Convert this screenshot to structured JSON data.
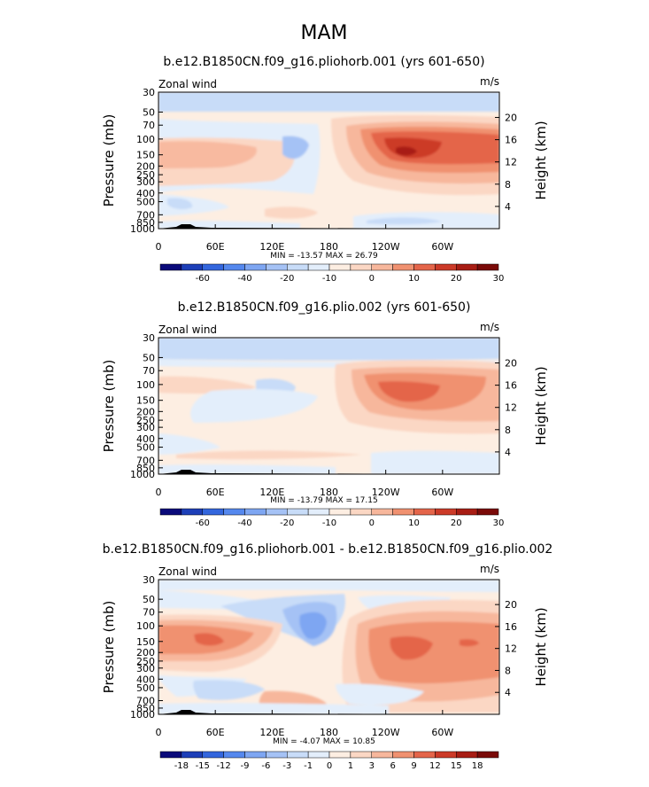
{
  "page_title": "MAM",
  "colors": [
    "#0a0a7a",
    "#1d3fb8",
    "#3366dd",
    "#5588ee",
    "#7ea6f2",
    "#a5c2f5",
    "#c8dcf8",
    "#e3eefb",
    "#fdeee2",
    "#fbd7c4",
    "#f7b79c",
    "#f09170",
    "#e4654a",
    "#cc3a28",
    "#a81d14",
    "#7a0a08"
  ],
  "chart_data": [
    {
      "type": "contour",
      "title": "b.e12.B1850CN.f09_g16.pliohorb.001 (yrs 601-650)",
      "left_label": "Zonal wind",
      "right_label": "m/s",
      "ylabel": "Pressure (mb)",
      "y2label": "Height (km)",
      "x_ticks": [
        "0",
        "60E",
        "120E",
        "180",
        "120W",
        "60W"
      ],
      "y_ticks": [
        "30",
        "50",
        "70",
        "100",
        "150",
        "200",
        "250",
        "300",
        "400",
        "500",
        "700",
        "850",
        "1000"
      ],
      "y2_ticks": [
        "20",
        "16",
        "12",
        "8",
        "4"
      ],
      "stats": "MIN = -13.57   MAX =  26.79",
      "colorbar_labels": [
        "-60",
        "-40",
        "-20",
        "-10",
        "0",
        "10",
        "20",
        "30"
      ]
    },
    {
      "type": "contour",
      "title": "b.e12.B1850CN.f09_g16.plio.002 (yrs 601-650)",
      "left_label": "Zonal wind",
      "right_label": "m/s",
      "ylabel": "Pressure (mb)",
      "y2label": "Height (km)",
      "x_ticks": [
        "0",
        "60E",
        "120E",
        "180",
        "120W",
        "60W"
      ],
      "y_ticks": [
        "30",
        "50",
        "70",
        "100",
        "150",
        "200",
        "250",
        "300",
        "400",
        "500",
        "700",
        "850",
        "1000"
      ],
      "y2_ticks": [
        "20",
        "16",
        "12",
        "8",
        "4"
      ],
      "stats": "MIN = -13.79   MAX =  17.15",
      "colorbar_labels": [
        "-60",
        "-40",
        "-20",
        "-10",
        "0",
        "10",
        "20",
        "30"
      ]
    },
    {
      "type": "contour",
      "title": "b.e12.B1850CN.f09_g16.pliohorb.001 - b.e12.B1850CN.f09_g16.plio.002",
      "left_label": "Zonal wind",
      "right_label": "m/s",
      "ylabel": "Pressure (mb)",
      "y2label": "Height (km)",
      "x_ticks": [
        "0",
        "60E",
        "120E",
        "180",
        "120W",
        "60W"
      ],
      "y_ticks": [
        "30",
        "50",
        "70",
        "100",
        "150",
        "200",
        "250",
        "300",
        "400",
        "500",
        "700",
        "850",
        "1000"
      ],
      "y2_ticks": [
        "20",
        "16",
        "12",
        "8",
        "4"
      ],
      "stats": "MIN =  -4.07   MAX =  10.85",
      "colorbar_labels": [
        "-18",
        "-15",
        "-12",
        "-9",
        "-6",
        "-3",
        "-1",
        "0",
        "1",
        "3",
        "6",
        "9",
        "12",
        "15",
        "18"
      ]
    }
  ]
}
